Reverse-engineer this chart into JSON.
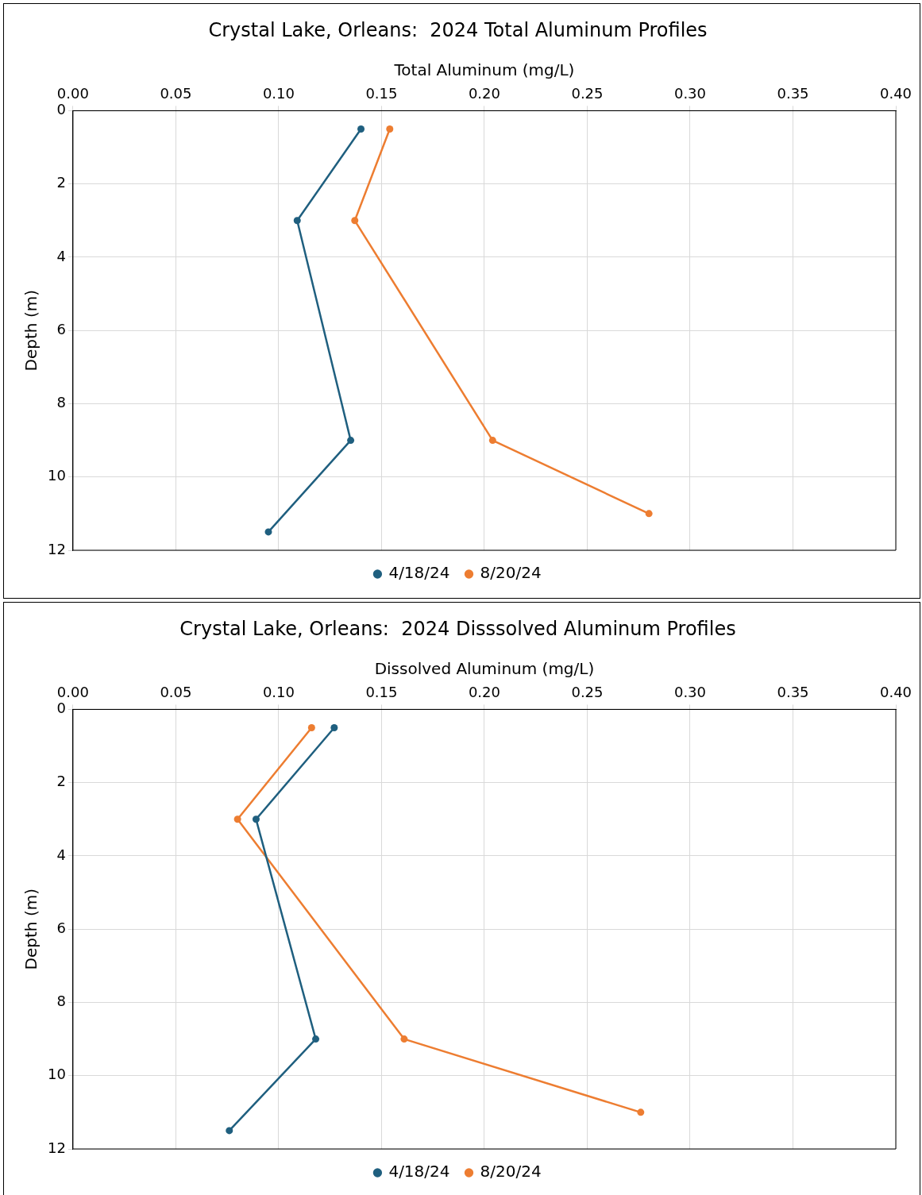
{
  "chart_data": [
    {
      "type": "line",
      "title": "Crystal Lake, Orleans:  2024 Total Aluminum Profiles",
      "xlabel": "Total Aluminum (mg/L)",
      "ylabel": "Depth (m)",
      "series": [
        {
          "name": "4/18/24",
          "color": "#1f5f7f",
          "x": [
            0.14,
            0.109,
            0.135,
            0.095
          ],
          "values": [
            0.5,
            3,
            9,
            11.5
          ]
        },
        {
          "name": "8/20/24",
          "color": "#ed7d31",
          "x": [
            0.154,
            0.137,
            0.204,
            0.28
          ],
          "values": [
            0.5,
            3,
            9,
            11
          ]
        }
      ],
      "xlim": [
        0,
        0.4
      ],
      "xticks": [
        {
          "value": 0,
          "label": "0.00"
        },
        {
          "value": 0.05,
          "label": "0.05"
        },
        {
          "value": 0.1,
          "label": "0.10"
        },
        {
          "value": 0.15,
          "label": "0.15"
        },
        {
          "value": 0.2,
          "label": "0.20"
        },
        {
          "value": 0.25,
          "label": "0.25"
        },
        {
          "value": 0.3,
          "label": "0.30"
        },
        {
          "value": 0.35,
          "label": "0.35"
        },
        {
          "value": 0.4,
          "label": "0.40"
        }
      ],
      "ylim": [
        12,
        0
      ],
      "yticks": [
        0,
        2,
        4,
        6,
        8,
        10,
        12
      ],
      "grid": true,
      "legend": "bottom",
      "marker": "circle",
      "line_style": "solid"
    },
    {
      "type": "line",
      "title": "Crystal Lake, Orleans:  2024 Disssolved Aluminum Profiles",
      "xlabel": "Dissolved Aluminum (mg/L)",
      "ylabel": "Depth (m)",
      "series": [
        {
          "name": "4/18/24",
          "color": "#1f5f7f",
          "x": [
            0.127,
            0.089,
            0.118,
            0.076
          ],
          "values": [
            0.5,
            3,
            9,
            11.5
          ]
        },
        {
          "name": "8/20/24",
          "color": "#ed7d31",
          "x": [
            0.116,
            0.08,
            0.161,
            0.276
          ],
          "values": [
            0.5,
            3,
            9,
            11
          ]
        }
      ],
      "xlim": [
        0,
        0.4
      ],
      "xticks": [
        {
          "value": 0,
          "label": "0.00"
        },
        {
          "value": 0.05,
          "label": "0.05"
        },
        {
          "value": 0.1,
          "label": "0.10"
        },
        {
          "value": 0.15,
          "label": "0.15"
        },
        {
          "value": 0.2,
          "label": "0.20"
        },
        {
          "value": 0.25,
          "label": "0.25"
        },
        {
          "value": 0.3,
          "label": "0.30"
        },
        {
          "value": 0.35,
          "label": "0.35"
        },
        {
          "value": 0.4,
          "label": "0.40"
        }
      ],
      "ylim": [
        12,
        0
      ],
      "yticks": [
        0,
        2,
        4,
        6,
        8,
        10,
        12
      ],
      "grid": true,
      "legend": "bottom",
      "marker": "circle",
      "line_style": "solid"
    }
  ]
}
